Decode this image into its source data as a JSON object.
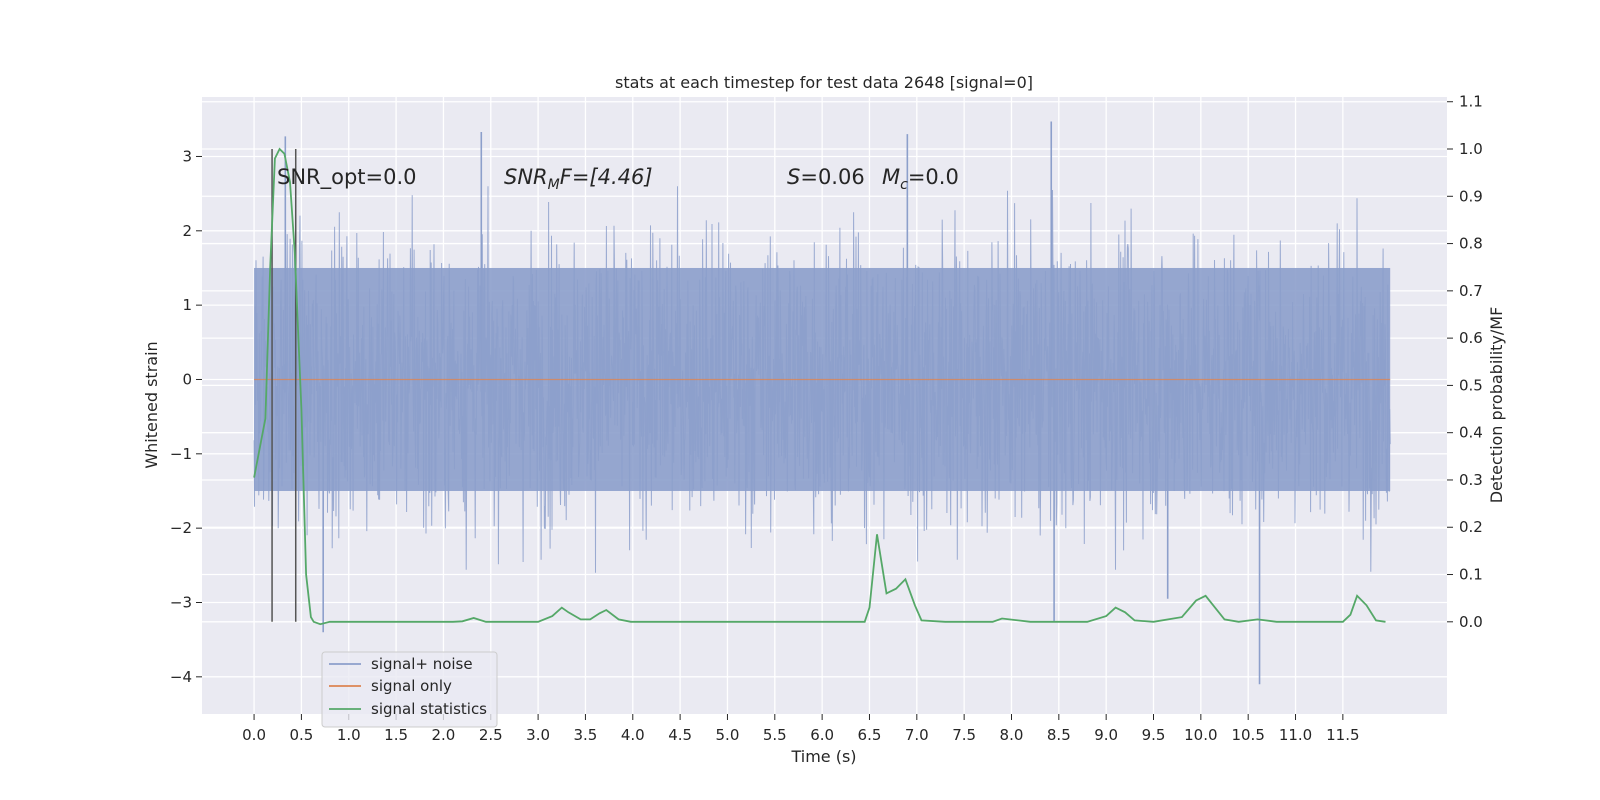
{
  "chart_data": {
    "type": "line",
    "title": "stats at each timestep for test data 2648 [signal=0]",
    "xlabel": "Time (s)",
    "ylabel": "Whitened strain",
    "y2label": "Detection probability/MF",
    "xlim": [
      -0.55,
      12.6
    ],
    "ylim": [
      -4.5,
      3.8
    ],
    "y2lim": [
      -0.195,
      1.11
    ],
    "x_ticks": [
      "0.0",
      "0.5",
      "1.0",
      "1.5",
      "2.0",
      "2.5",
      "3.0",
      "3.5",
      "4.0",
      "4.5",
      "5.0",
      "5.5",
      "6.0",
      "6.5",
      "7.0",
      "7.5",
      "8.0",
      "8.5",
      "9.0",
      "9.5",
      "10.0",
      "10.5",
      "11.0",
      "11.5"
    ],
    "y_ticks": [
      "3",
      "2",
      "1",
      "0",
      "−1",
      "−2",
      "−3",
      "−4"
    ],
    "y2_ticks": [
      "1.1",
      "1.0",
      "0.9",
      "0.8",
      "0.7",
      "0.6",
      "0.5",
      "0.4",
      "0.3",
      "0.2",
      "0.1",
      "0.0"
    ],
    "grid": true,
    "legend": {
      "position": "lower-left",
      "entries": [
        {
          "label": "signal+ noise",
          "color": "#8c9fcb"
        },
        {
          "label": "signal only",
          "color": "#dd8452"
        },
        {
          "label": "signal statistics",
          "color": "#55a868"
        }
      ]
    },
    "annotations": {
      "snr_opt": "SNR_opt=0.0",
      "snr_mf_base": "SNR",
      "snr_mf_sub": "M",
      "snr_mf_rest": "F=[4.46]",
      "s_label": "S",
      "s_value": "=0.06",
      "mc_base": "M",
      "mc_sub": "c",
      "mc_value": "=0.0"
    },
    "vlines_x": [
      0.19,
      0.44
    ],
    "series": [
      {
        "name": "signal+ noise",
        "color": "#8c9fcb",
        "x_range": [
          0.0,
          12.0
        ],
        "envelope_typical": [
          -1.5,
          1.5
        ],
        "notable_peaks": [
          {
            "x": 0.33,
            "y": 3.27
          },
          {
            "x": 2.4,
            "y": 3.33
          },
          {
            "x": 6.9,
            "y": 3.3
          },
          {
            "x": 8.42,
            "y": 3.47
          },
          {
            "x": 10.62,
            "y": -4.1
          },
          {
            "x": 8.45,
            "y": -3.25
          },
          {
            "x": 0.73,
            "y": -3.4
          },
          {
            "x": 9.65,
            "y": -2.95
          }
        ]
      },
      {
        "name": "signal only",
        "color": "#dd8452",
        "x": [
          0.0,
          12.0
        ],
        "y": [
          0.0,
          0.0
        ]
      },
      {
        "name": "signal statistics",
        "axis": "right",
        "color": "#55a868",
        "x": [
          0.0,
          0.12,
          0.17,
          0.22,
          0.27,
          0.32,
          0.38,
          0.43,
          0.5,
          0.55,
          0.6,
          0.63,
          0.7,
          0.8,
          1.0,
          1.5,
          2.0,
          2.1,
          2.2,
          2.32,
          2.45,
          2.6,
          3.0,
          3.15,
          3.25,
          3.32,
          3.45,
          3.55,
          3.65,
          3.72,
          3.85,
          3.98,
          4.2,
          5.0,
          6.0,
          6.45,
          6.5,
          6.58,
          6.68,
          6.78,
          6.88,
          6.98,
          7.05,
          7.3,
          7.8,
          7.9,
          8.2,
          8.5,
          8.8,
          9.0,
          9.1,
          9.2,
          9.3,
          9.5,
          9.8,
          9.95,
          10.05,
          10.15,
          10.25,
          10.4,
          10.6,
          10.8,
          11.0,
          11.5,
          11.58,
          11.65,
          11.75,
          11.85,
          11.95
        ],
        "y": [
          0.305,
          0.43,
          0.75,
          0.98,
          1.0,
          0.99,
          0.93,
          0.78,
          0.45,
          0.1,
          0.01,
          0.0,
          -0.005,
          0.0,
          0.0,
          0.0,
          0.0,
          0.0,
          0.001,
          0.008,
          0.0,
          0.0,
          0.0,
          0.012,
          0.03,
          0.02,
          0.005,
          0.005,
          0.018,
          0.025,
          0.005,
          0.0,
          0.0,
          0.0,
          0.0,
          0.0,
          0.03,
          0.185,
          0.06,
          0.07,
          0.09,
          0.035,
          0.003,
          0.0,
          0.0,
          0.007,
          0.0,
          0.0,
          0.0,
          0.012,
          0.03,
          0.02,
          0.003,
          0.0,
          0.01,
          0.045,
          0.055,
          0.03,
          0.005,
          0.0,
          0.005,
          0.0,
          0.0,
          0.0,
          0.015,
          0.055,
          0.035,
          0.003,
          0.0
        ]
      }
    ]
  }
}
